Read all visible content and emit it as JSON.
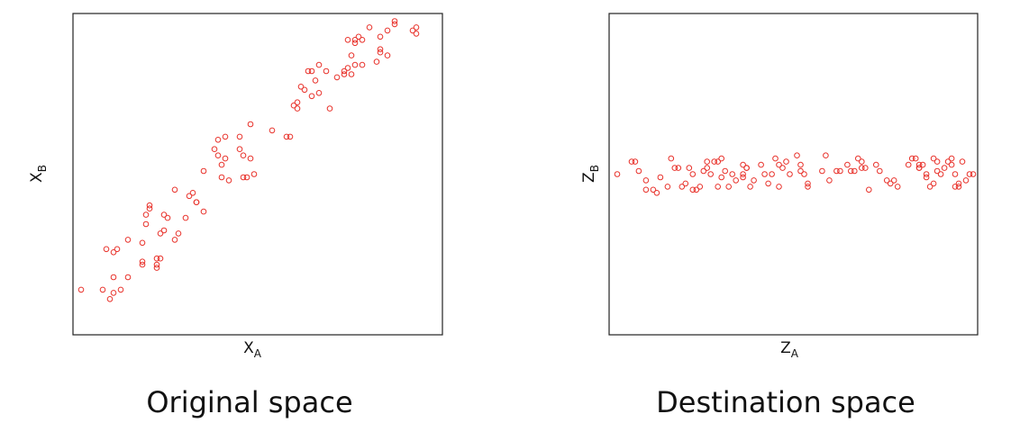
{
  "captions": {
    "left": "Original space",
    "right": "Destination space"
  },
  "colors": {
    "points": "#e8322b",
    "frame": "#222222"
  },
  "chart_data": [
    {
      "type": "scatter",
      "xlabel": "X",
      "xlabel_sub": "A",
      "ylabel": "X",
      "ylabel_sub": "B",
      "xlim": [
        0,
        100
      ],
      "ylim": [
        0,
        100
      ],
      "points": [
        [
          1,
          13
        ],
        [
          7,
          13
        ],
        [
          9,
          10
        ],
        [
          10,
          12
        ],
        [
          10,
          17
        ],
        [
          12,
          13
        ],
        [
          14,
          17
        ],
        [
          8,
          26
        ],
        [
          10,
          25
        ],
        [
          11,
          26
        ],
        [
          14,
          29
        ],
        [
          18,
          28
        ],
        [
          18,
          22
        ],
        [
          18,
          21
        ],
        [
          19,
          34
        ],
        [
          19,
          37
        ],
        [
          20,
          39
        ],
        [
          20,
          40
        ],
        [
          22,
          20
        ],
        [
          22,
          21
        ],
        [
          22,
          23
        ],
        [
          23,
          23
        ],
        [
          23,
          31
        ],
        [
          24,
          32
        ],
        [
          24,
          37
        ],
        [
          25,
          36
        ],
        [
          27,
          29
        ],
        [
          27,
          45
        ],
        [
          28,
          31
        ],
        [
          30,
          36
        ],
        [
          31,
          43
        ],
        [
          32,
          44
        ],
        [
          33,
          41
        ],
        [
          33,
          41
        ],
        [
          35,
          51
        ],
        [
          35,
          38
        ],
        [
          38,
          58
        ],
        [
          39,
          56
        ],
        [
          39,
          61
        ],
        [
          40,
          53
        ],
        [
          40,
          49
        ],
        [
          41,
          55
        ],
        [
          41,
          62
        ],
        [
          42,
          48
        ],
        [
          45,
          58
        ],
        [
          45,
          62
        ],
        [
          46,
          49
        ],
        [
          46,
          56
        ],
        [
          47,
          49
        ],
        [
          48,
          55
        ],
        [
          48,
          66
        ],
        [
          49,
          50
        ],
        [
          54,
          64
        ],
        [
          58,
          62
        ],
        [
          59,
          62
        ],
        [
          60,
          72
        ],
        [
          61,
          71
        ],
        [
          61,
          73
        ],
        [
          62,
          78
        ],
        [
          63,
          77
        ],
        [
          64,
          83
        ],
        [
          65,
          83
        ],
        [
          65,
          75
        ],
        [
          66,
          80
        ],
        [
          67,
          85
        ],
        [
          67,
          76
        ],
        [
          69,
          83
        ],
        [
          70,
          71
        ],
        [
          72,
          81
        ],
        [
          74,
          83
        ],
        [
          74,
          82
        ],
        [
          75,
          93
        ],
        [
          75,
          84
        ],
        [
          76,
          88
        ],
        [
          76,
          82
        ],
        [
          77,
          93
        ],
        [
          77,
          85
        ],
        [
          77,
          92
        ],
        [
          78,
          94
        ],
        [
          79,
          93
        ],
        [
          79,
          85
        ],
        [
          81,
          97
        ],
        [
          83,
          86
        ],
        [
          84,
          89
        ],
        [
          84,
          90
        ],
        [
          84,
          94
        ],
        [
          86,
          96
        ],
        [
          86,
          88
        ],
        [
          88,
          98
        ],
        [
          88,
          99
        ],
        [
          93,
          96
        ],
        [
          94,
          95
        ],
        [
          94,
          97
        ]
      ]
    },
    {
      "type": "scatter",
      "xlabel": "Z",
      "xlabel_sub": "A",
      "ylabel": "Z",
      "ylabel_sub": "B",
      "xlim": [
        0,
        100
      ],
      "ylim": [
        0,
        100
      ],
      "points": [
        [
          1,
          50
        ],
        [
          5,
          54
        ],
        [
          6,
          54
        ],
        [
          7,
          51
        ],
        [
          9,
          45
        ],
        [
          9,
          48
        ],
        [
          11,
          45
        ],
        [
          12,
          44
        ],
        [
          13,
          49
        ],
        [
          15,
          46
        ],
        [
          16,
          55
        ],
        [
          17,
          52
        ],
        [
          18,
          52
        ],
        [
          19,
          46
        ],
        [
          20,
          47
        ],
        [
          21,
          52
        ],
        [
          22,
          50
        ],
        [
          22,
          45
        ],
        [
          23,
          45
        ],
        [
          24,
          46
        ],
        [
          25,
          51
        ],
        [
          26,
          54
        ],
        [
          26,
          52
        ],
        [
          27,
          50
        ],
        [
          28,
          54
        ],
        [
          29,
          46
        ],
        [
          29,
          54
        ],
        [
          30,
          55
        ],
        [
          30,
          49
        ],
        [
          31,
          51
        ],
        [
          32,
          46
        ],
        [
          33,
          50
        ],
        [
          34,
          48
        ],
        [
          36,
          53
        ],
        [
          36,
          49
        ],
        [
          36,
          50
        ],
        [
          37,
          52
        ],
        [
          37,
          52
        ],
        [
          38,
          46
        ],
        [
          39,
          48
        ],
        [
          41,
          53
        ],
        [
          42,
          50
        ],
        [
          43,
          47
        ],
        [
          44,
          50
        ],
        [
          45,
          55
        ],
        [
          46,
          53
        ],
        [
          46,
          46
        ],
        [
          47,
          52
        ],
        [
          48,
          54
        ],
        [
          49,
          50
        ],
        [
          51,
          56
        ],
        [
          52,
          53
        ],
        [
          52,
          51
        ],
        [
          53,
          50
        ],
        [
          54,
          47
        ],
        [
          54,
          46
        ],
        [
          58,
          51
        ],
        [
          59,
          56
        ],
        [
          60,
          48
        ],
        [
          62,
          51
        ],
        [
          63,
          51
        ],
        [
          65,
          53
        ],
        [
          66,
          51
        ],
        [
          67,
          51
        ],
        [
          68,
          55
        ],
        [
          69,
          54
        ],
        [
          69,
          52
        ],
        [
          70,
          52
        ],
        [
          71,
          45
        ],
        [
          73,
          53
        ],
        [
          74,
          51
        ],
        [
          76,
          48
        ],
        [
          77,
          47
        ],
        [
          78,
          48
        ],
        [
          79,
          46
        ],
        [
          82,
          53
        ],
        [
          83,
          55
        ],
        [
          84,
          55
        ],
        [
          85,
          52
        ],
        [
          85,
          52
        ],
        [
          85,
          53
        ],
        [
          86,
          53
        ],
        [
          87,
          49
        ],
        [
          87,
          50
        ],
        [
          88,
          46
        ],
        [
          89,
          47
        ],
        [
          89,
          55
        ],
        [
          90,
          54
        ],
        [
          90,
          51
        ],
        [
          91,
          50
        ],
        [
          92,
          52
        ],
        [
          93,
          54
        ],
        [
          94,
          53
        ],
        [
          94,
          55
        ],
        [
          95,
          50
        ],
        [
          95,
          46
        ],
        [
          96,
          47
        ],
        [
          96,
          46
        ],
        [
          97,
          54
        ],
        [
          98,
          48
        ],
        [
          99,
          50
        ],
        [
          100,
          50
        ]
      ]
    }
  ]
}
